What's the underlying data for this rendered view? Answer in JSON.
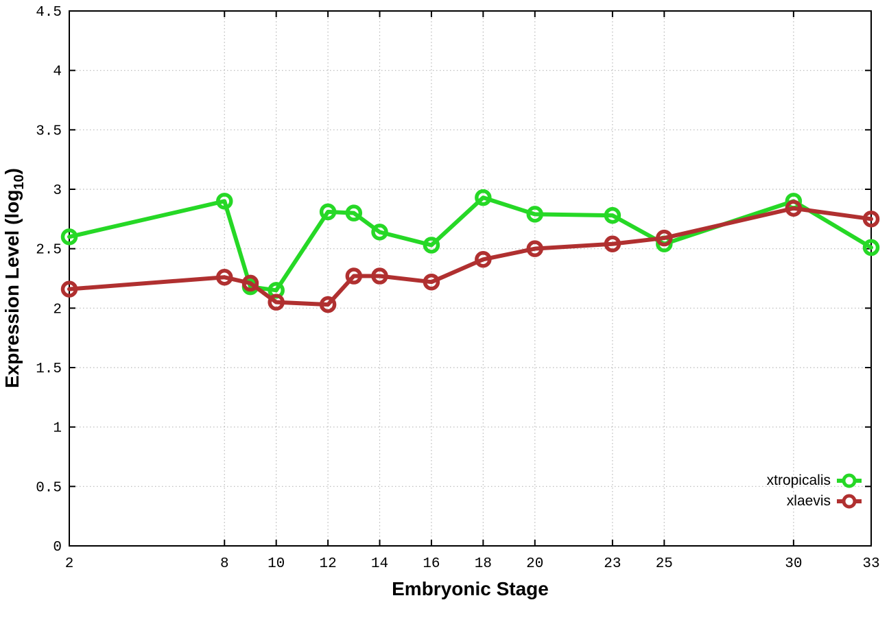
{
  "chart_data": {
    "type": "line",
    "title": "",
    "xlabel": "Embryonic Stage",
    "ylabel": "Expression Level (log10)",
    "ylabel_parts": {
      "prefix": "Expression Level (log",
      "sub": "10",
      "suffix": ")"
    },
    "x": [
      2,
      8,
      9,
      10,
      12,
      13,
      14,
      16,
      18,
      20,
      23,
      25,
      30,
      33
    ],
    "series": [
      {
        "name": "xtropicalis",
        "color": "#26d826",
        "values": [
          2.6,
          2.9,
          2.18,
          2.15,
          2.81,
          2.8,
          2.64,
          2.53,
          2.93,
          2.79,
          2.78,
          2.54,
          2.9,
          2.51
        ]
      },
      {
        "name": "xlaevis",
        "color": "#b03030",
        "values": [
          2.16,
          2.26,
          2.21,
          2.05,
          2.03,
          2.27,
          2.27,
          2.22,
          2.41,
          2.5,
          2.54,
          2.59,
          2.84,
          2.75
        ]
      }
    ],
    "x_ticks": [
      2,
      8,
      10,
      12,
      14,
      16,
      18,
      20,
      23,
      25,
      30,
      33
    ],
    "y_ticks": [
      0,
      0.5,
      1,
      1.5,
      2,
      2.5,
      3,
      3.5,
      4,
      4.5
    ],
    "xlim": [
      2,
      33
    ],
    "ylim": [
      0,
      4.5
    ],
    "grid": true,
    "legend_position": "bottom-right",
    "colors": {
      "grid": "#b8b8b8",
      "axis": "#000000",
      "background": "#ffffff",
      "tick_text": "#000000"
    }
  }
}
